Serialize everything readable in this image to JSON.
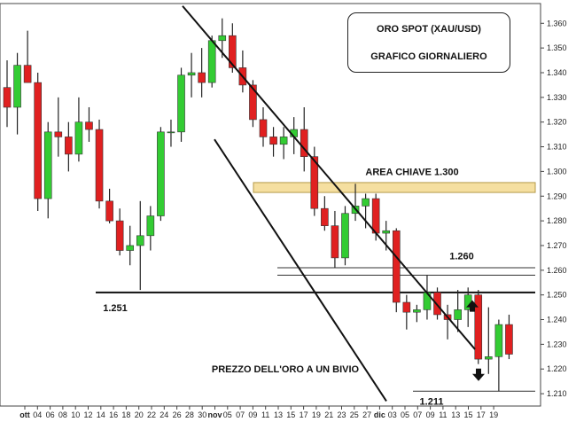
{
  "chart_data": {
    "type": "candlestick",
    "title": "ORO SPOT (XAU/USD)",
    "subtitle": "GRAFICO GIORNALIERO",
    "ylim": [
      1.205,
      1.368
    ],
    "y_ticks": [
      "1.210",
      "1.220",
      "1.230",
      "1.240",
      "1.250",
      "1.260",
      "1.270",
      "1.280",
      "1.290",
      "1.300",
      "1.310",
      "1.320",
      "1.330",
      "1.340",
      "1.350",
      "1.360"
    ],
    "x_ticks": [
      "ott",
      "04",
      "06",
      "08",
      "10",
      "12",
      "14",
      "16",
      "18",
      "20",
      "22",
      "24",
      "26",
      "28",
      "30",
      "nov",
      "05",
      "07",
      "09",
      "11",
      "13",
      "15",
      "17",
      "19",
      "21",
      "23",
      "25",
      "27",
      "dic",
      "03",
      "05",
      "07",
      "09",
      "11",
      "13",
      "15",
      "17",
      "19"
    ],
    "colors": {
      "up": "#33cc33",
      "down": "#e02020",
      "zone": "#f5dfa0",
      "zone_border": "#b59a4a"
    },
    "candles": [
      {
        "o": 1.334,
        "h": 1.345,
        "l": 1.318,
        "c": 1.326
      },
      {
        "o": 1.326,
        "h": 1.348,
        "l": 1.315,
        "c": 1.343
      },
      {
        "o": 1.343,
        "h": 1.357,
        "l": 1.336,
        "c": 1.336
      },
      {
        "o": 1.336,
        "h": 1.34,
        "l": 1.284,
        "c": 1.289
      },
      {
        "o": 1.289,
        "h": 1.32,
        "l": 1.281,
        "c": 1.316
      },
      {
        "o": 1.316,
        "h": 1.33,
        "l": 1.306,
        "c": 1.314
      },
      {
        "o": 1.314,
        "h": 1.32,
        "l": 1.3,
        "c": 1.307
      },
      {
        "o": 1.307,
        "h": 1.33,
        "l": 1.304,
        "c": 1.32
      },
      {
        "o": 1.32,
        "h": 1.326,
        "l": 1.312,
        "c": 1.317
      },
      {
        "o": 1.317,
        "h": 1.321,
        "l": 1.285,
        "c": 1.288
      },
      {
        "o": 1.288,
        "h": 1.293,
        "l": 1.279,
        "c": 1.28
      },
      {
        "o": 1.28,
        "h": 1.285,
        "l": 1.266,
        "c": 1.268
      },
      {
        "o": 1.268,
        "h": 1.278,
        "l": 1.262,
        "c": 1.27
      },
      {
        "o": 1.27,
        "h": 1.288,
        "l": 1.252,
        "c": 1.274
      },
      {
        "o": 1.274,
        "h": 1.286,
        "l": 1.268,
        "c": 1.282
      },
      {
        "o": 1.282,
        "h": 1.318,
        "l": 1.28,
        "c": 1.316
      },
      {
        "o": 1.316,
        "h": 1.321,
        "l": 1.31,
        "c": 1.316
      },
      {
        "o": 1.316,
        "h": 1.342,
        "l": 1.312,
        "c": 1.339
      },
      {
        "o": 1.339,
        "h": 1.348,
        "l": 1.33,
        "c": 1.34
      },
      {
        "o": 1.34,
        "h": 1.35,
        "l": 1.33,
        "c": 1.336
      },
      {
        "o": 1.336,
        "h": 1.355,
        "l": 1.334,
        "c": 1.353
      },
      {
        "o": 1.353,
        "h": 1.362,
        "l": 1.346,
        "c": 1.355
      },
      {
        "o": 1.355,
        "h": 1.36,
        "l": 1.34,
        "c": 1.342
      },
      {
        "o": 1.342,
        "h": 1.349,
        "l": 1.332,
        "c": 1.335
      },
      {
        "o": 1.335,
        "h": 1.337,
        "l": 1.318,
        "c": 1.321
      },
      {
        "o": 1.321,
        "h": 1.326,
        "l": 1.31,
        "c": 1.314
      },
      {
        "o": 1.314,
        "h": 1.318,
        "l": 1.306,
        "c": 1.311
      },
      {
        "o": 1.311,
        "h": 1.318,
        "l": 1.305,
        "c": 1.314
      },
      {
        "o": 1.314,
        "h": 1.322,
        "l": 1.307,
        "c": 1.317
      },
      {
        "o": 1.317,
        "h": 1.326,
        "l": 1.3,
        "c": 1.306
      },
      {
        "o": 1.306,
        "h": 1.31,
        "l": 1.282,
        "c": 1.285
      },
      {
        "o": 1.285,
        "h": 1.29,
        "l": 1.276,
        "c": 1.278
      },
      {
        "o": 1.278,
        "h": 1.284,
        "l": 1.261,
        "c": 1.265
      },
      {
        "o": 1.265,
        "h": 1.286,
        "l": 1.262,
        "c": 1.283
      },
      {
        "o": 1.283,
        "h": 1.295,
        "l": 1.28,
        "c": 1.286
      },
      {
        "o": 1.286,
        "h": 1.291,
        "l": 1.277,
        "c": 1.289
      },
      {
        "o": 1.289,
        "h": 1.291,
        "l": 1.272,
        "c": 1.275
      },
      {
        "o": 1.275,
        "h": 1.28,
        "l": 1.268,
        "c": 1.276
      },
      {
        "o": 1.276,
        "h": 1.277,
        "l": 1.243,
        "c": 1.247
      },
      {
        "o": 1.247,
        "h": 1.25,
        "l": 1.236,
        "c": 1.243
      },
      {
        "o": 1.243,
        "h": 1.246,
        "l": 1.239,
        "c": 1.244
      },
      {
        "o": 1.244,
        "h": 1.258,
        "l": 1.24,
        "c": 1.251
      },
      {
        "o": 1.251,
        "h": 1.253,
        "l": 1.24,
        "c": 1.242
      },
      {
        "o": 1.242,
        "h": 1.246,
        "l": 1.232,
        "c": 1.24
      },
      {
        "o": 1.24,
        "h": 1.252,
        "l": 1.235,
        "c": 1.244
      },
      {
        "o": 1.244,
        "h": 1.253,
        "l": 1.237,
        "c": 1.25
      },
      {
        "o": 1.25,
        "h": 1.252,
        "l": 1.222,
        "c": 1.224
      },
      {
        "o": 1.224,
        "h": 1.245,
        "l": 1.218,
        "c": 1.225
      },
      {
        "o": 1.225,
        "h": 1.24,
        "l": 1.211,
        "c": 1.238
      },
      {
        "o": 1.238,
        "h": 1.242,
        "l": 1.224,
        "c": 1.226
      }
    ],
    "annotations": {
      "key_area": "AREA CHIAVE 1.300",
      "level_1260": "1.260",
      "level_1251": "1.251",
      "level_1211": "1.211",
      "caption": "PREZZO DELL'ORO A UN BIVIO"
    },
    "levels": {
      "support": 1.251,
      "resistance_a": 1.261,
      "resistance_b": 1.258,
      "low": 1.211,
      "zone_top": 1.2955,
      "zone_bottom": 1.2915
    },
    "channel": {
      "upper": [
        [
          1.367,
          1.228
        ]
      ],
      "lower": [
        [
          1.313,
          1.205
        ]
      ]
    }
  }
}
